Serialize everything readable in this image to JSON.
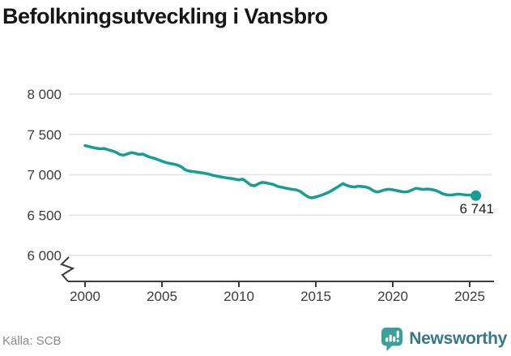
{
  "title": "Befolkningsutveckling i Vansbro",
  "source": "Källa: SCB",
  "branding": {
    "name": "Newsworthy",
    "icon": "newsworthy-bubble-chart-icon",
    "icon_color": "#3ba198",
    "text_color": "#35798a"
  },
  "chart_data": {
    "type": "line",
    "title": "Befolkningsutveckling i Vansbro",
    "xlabel": "",
    "ylabel": "",
    "grid": "horizontal",
    "axis_break": true,
    "legend_position": "none",
    "xlim": [
      1999.0,
      2026.6
    ],
    "ylim": [
      5850,
      8000
    ],
    "x_ticks": [
      {
        "value": 2000,
        "label": "2000"
      },
      {
        "value": 2005,
        "label": "2005"
      },
      {
        "value": 2010,
        "label": "2010"
      },
      {
        "value": 2015,
        "label": "2015"
      },
      {
        "value": 2020,
        "label": "2020"
      },
      {
        "value": 2025,
        "label": "2025"
      }
    ],
    "y_ticks": [
      {
        "value": 8000,
        "label": "8 000"
      },
      {
        "value": 7500,
        "label": "7 500"
      },
      {
        "value": 7000,
        "label": "7 000"
      },
      {
        "value": 6500,
        "label": "6 500"
      },
      {
        "value": 6000,
        "label": "6 000"
      }
    ],
    "end_point": {
      "year": 2025.4,
      "value": 6741,
      "label": "6 741"
    },
    "series": [
      {
        "name": "Befolkning",
        "color": "#179e94",
        "points": [
          [
            2000.0,
            7362
          ],
          [
            2000.25,
            7350
          ],
          [
            2000.5,
            7338
          ],
          [
            2000.75,
            7328
          ],
          [
            2001.0,
            7322
          ],
          [
            2001.25,
            7326
          ],
          [
            2001.5,
            7310
          ],
          [
            2001.75,
            7296
          ],
          [
            2002.0,
            7280
          ],
          [
            2002.25,
            7252
          ],
          [
            2002.5,
            7242
          ],
          [
            2002.75,
            7258
          ],
          [
            2003.0,
            7274
          ],
          [
            2003.25,
            7266
          ],
          [
            2003.5,
            7252
          ],
          [
            2003.75,
            7256
          ],
          [
            2004.0,
            7234
          ],
          [
            2004.25,
            7216
          ],
          [
            2004.5,
            7204
          ],
          [
            2004.75,
            7186
          ],
          [
            2005.0,
            7168
          ],
          [
            2005.25,
            7152
          ],
          [
            2005.5,
            7142
          ],
          [
            2005.75,
            7132
          ],
          [
            2006.0,
            7122
          ],
          [
            2006.25,
            7100
          ],
          [
            2006.5,
            7062
          ],
          [
            2006.75,
            7046
          ],
          [
            2007.0,
            7040
          ],
          [
            2007.25,
            7034
          ],
          [
            2007.5,
            7026
          ],
          [
            2007.75,
            7020
          ],
          [
            2008.0,
            7010
          ],
          [
            2008.25,
            6996
          ],
          [
            2008.5,
            6986
          ],
          [
            2008.75,
            6976
          ],
          [
            2009.0,
            6968
          ],
          [
            2009.25,
            6960
          ],
          [
            2009.5,
            6954
          ],
          [
            2009.75,
            6946
          ],
          [
            2010.0,
            6936
          ],
          [
            2010.25,
            6946
          ],
          [
            2010.5,
            6912
          ],
          [
            2010.75,
            6874
          ],
          [
            2011.0,
            6862
          ],
          [
            2011.25,
            6886
          ],
          [
            2011.5,
            6906
          ],
          [
            2011.75,
            6900
          ],
          [
            2012.0,
            6890
          ],
          [
            2012.25,
            6878
          ],
          [
            2012.5,
            6856
          ],
          [
            2012.75,
            6846
          ],
          [
            2013.0,
            6836
          ],
          [
            2013.25,
            6826
          ],
          [
            2013.5,
            6818
          ],
          [
            2013.75,
            6812
          ],
          [
            2014.0,
            6792
          ],
          [
            2014.25,
            6756
          ],
          [
            2014.5,
            6726
          ],
          [
            2014.75,
            6714
          ],
          [
            2015.0,
            6726
          ],
          [
            2015.25,
            6740
          ],
          [
            2015.5,
            6756
          ],
          [
            2015.75,
            6776
          ],
          [
            2016.0,
            6800
          ],
          [
            2016.25,
            6830
          ],
          [
            2016.5,
            6858
          ],
          [
            2016.75,
            6890
          ],
          [
            2017.0,
            6868
          ],
          [
            2017.25,
            6854
          ],
          [
            2017.5,
            6848
          ],
          [
            2017.75,
            6858
          ],
          [
            2018.0,
            6854
          ],
          [
            2018.25,
            6848
          ],
          [
            2018.5,
            6832
          ],
          [
            2018.75,
            6800
          ],
          [
            2019.0,
            6786
          ],
          [
            2019.25,
            6800
          ],
          [
            2019.5,
            6814
          ],
          [
            2019.75,
            6820
          ],
          [
            2020.0,
            6814
          ],
          [
            2020.25,
            6804
          ],
          [
            2020.5,
            6794
          ],
          [
            2020.75,
            6786
          ],
          [
            2021.0,
            6792
          ],
          [
            2021.25,
            6812
          ],
          [
            2021.5,
            6832
          ],
          [
            2021.75,
            6824
          ],
          [
            2022.0,
            6818
          ],
          [
            2022.25,
            6824
          ],
          [
            2022.5,
            6818
          ],
          [
            2022.75,
            6808
          ],
          [
            2023.0,
            6788
          ],
          [
            2023.25,
            6764
          ],
          [
            2023.5,
            6752
          ],
          [
            2023.75,
            6748
          ],
          [
            2024.0,
            6754
          ],
          [
            2024.25,
            6760
          ],
          [
            2024.5,
            6756
          ],
          [
            2024.75,
            6750
          ],
          [
            2025.0,
            6748
          ],
          [
            2025.2,
            6744
          ],
          [
            2025.4,
            6741
          ]
        ]
      }
    ]
  }
}
